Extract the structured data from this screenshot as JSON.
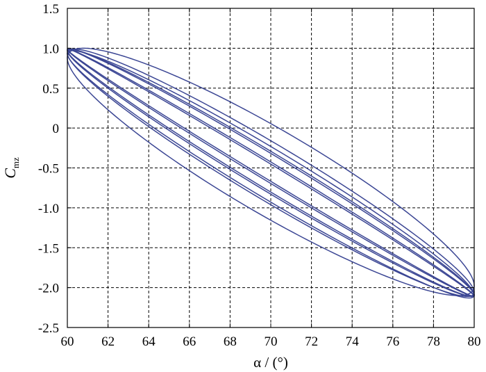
{
  "chart_data": {
    "type": "line",
    "title": "",
    "xlabel": "α / (°)",
    "ylabel_main": "C",
    "ylabel_sub": "mz",
    "xlim": [
      60,
      80
    ],
    "ylim": [
      -2.5,
      1.5
    ],
    "xticks": [
      "60",
      "62",
      "64",
      "66",
      "68",
      "70",
      "72",
      "74",
      "76",
      "78",
      "80"
    ],
    "yticks": [
      "1.5",
      "1.0",
      "0.5",
      "0",
      "-0.5",
      "-1.0",
      "-1.5",
      "-2.0",
      "-2.5"
    ],
    "grid": true,
    "grid_style": "dashed",
    "line_color": "#3b4694",
    "loops": [
      {
        "x_center": 70,
        "x_amp": 10,
        "y_center": -0.55,
        "y_amp": 1.55,
        "phase_deg": 23
      },
      {
        "x_center": 70,
        "x_amp": 10,
        "y_center": -0.56,
        "y_amp": 1.55,
        "phase_deg": 15
      },
      {
        "x_center": 70,
        "x_amp": 10,
        "y_center": -0.56,
        "y_amp": 1.55,
        "phase_deg": 10
      },
      {
        "x_center": 70,
        "x_amp": 10,
        "y_center": -0.56,
        "y_amp": 1.55,
        "phase_deg": 5
      },
      {
        "x_center": 70,
        "x_amp": 10,
        "y_center": -0.56,
        "y_amp": 1.55,
        "phase_deg": -4
      },
      {
        "x_center": 70,
        "x_amp": 10,
        "y_center": -0.56,
        "y_amp": 1.55,
        "phase_deg": -9
      },
      {
        "x_center": 70,
        "x_amp": 10,
        "y_center": -0.58,
        "y_amp": 1.55,
        "phase_deg": -13
      }
    ]
  }
}
